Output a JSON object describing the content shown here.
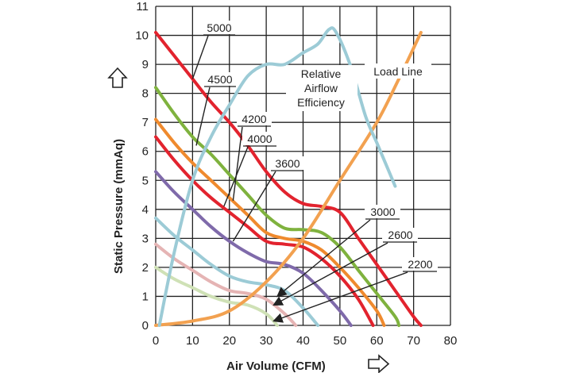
{
  "chart_data": {
    "type": "line",
    "xlabel": "Air Volume (CFM)",
    "ylabel": "Static Pressure (mmAq)",
    "xlim": [
      0,
      80
    ],
    "ylim": [
      0,
      11
    ],
    "x_ticks": [
      0,
      10,
      20,
      30,
      40,
      50,
      60,
      70,
      80
    ],
    "y_ticks": [
      0,
      1,
      2,
      3,
      4,
      5,
      6,
      7,
      8,
      9,
      10,
      11
    ],
    "grid": true,
    "legend": "none",
    "series": [
      {
        "name": "5000",
        "color": "#e2232e",
        "points": [
          [
            0,
            10.1
          ],
          [
            5,
            9.3
          ],
          [
            10,
            8.5
          ],
          [
            15,
            7.7
          ],
          [
            20,
            7.0
          ],
          [
            25,
            6.2
          ],
          [
            30,
            5.3
          ],
          [
            35,
            4.6
          ],
          [
            40,
            4.2
          ],
          [
            45,
            4.1
          ],
          [
            50,
            3.9
          ],
          [
            55,
            3.0
          ],
          [
            60,
            2.1
          ],
          [
            65,
            1.2
          ],
          [
            70,
            0.3
          ],
          [
            72,
            0
          ]
        ]
      },
      {
        "name": "4500",
        "color": "#7fb23e",
        "points": [
          [
            0,
            8.2
          ],
          [
            5,
            7.3
          ],
          [
            10,
            6.5
          ],
          [
            15,
            5.9
          ],
          [
            20,
            5.2
          ],
          [
            25,
            4.5
          ],
          [
            30,
            3.8
          ],
          [
            35,
            3.35
          ],
          [
            40,
            3.3
          ],
          [
            45,
            3.2
          ],
          [
            50,
            2.7
          ],
          [
            55,
            1.9
          ],
          [
            60,
            1.1
          ],
          [
            65,
            0.3
          ],
          [
            66,
            0
          ]
        ]
      },
      {
        "name": "4200",
        "color": "#ef8a2e",
        "points": [
          [
            0,
            7.1
          ],
          [
            5,
            6.3
          ],
          [
            10,
            5.6
          ],
          [
            15,
            5.0
          ],
          [
            20,
            4.4
          ],
          [
            25,
            3.8
          ],
          [
            30,
            3.2
          ],
          [
            35,
            3.0
          ],
          [
            40,
            2.9
          ],
          [
            45,
            2.6
          ],
          [
            50,
            2.0
          ],
          [
            55,
            1.3
          ],
          [
            60,
            0.5
          ],
          [
            62,
            0
          ]
        ]
      },
      {
        "name": "4000",
        "color": "#e2232e",
        "points": [
          [
            0,
            6.5
          ],
          [
            5,
            5.7
          ],
          [
            10,
            5.0
          ],
          [
            15,
            4.4
          ],
          [
            20,
            3.9
          ],
          [
            25,
            3.4
          ],
          [
            30,
            2.9
          ],
          [
            35,
            2.8
          ],
          [
            40,
            2.7
          ],
          [
            45,
            2.3
          ],
          [
            50,
            1.7
          ],
          [
            55,
            0.9
          ],
          [
            59,
            0
          ]
        ]
      },
      {
        "name": "3600",
        "color": "#7f6aaa",
        "points": [
          [
            0,
            5.3
          ],
          [
            5,
            4.6
          ],
          [
            10,
            4.0
          ],
          [
            15,
            3.4
          ],
          [
            20,
            2.9
          ],
          [
            25,
            2.5
          ],
          [
            30,
            2.2
          ],
          [
            35,
            2.1
          ],
          [
            40,
            1.8
          ],
          [
            45,
            1.2
          ],
          [
            50,
            0.5
          ],
          [
            53,
            0
          ]
        ]
      },
      {
        "name": "3000",
        "color": "#9ccbd6",
        "points": [
          [
            0,
            3.7
          ],
          [
            5,
            3.1
          ],
          [
            10,
            2.6
          ],
          [
            15,
            2.1
          ],
          [
            20,
            1.7
          ],
          [
            25,
            1.5
          ],
          [
            30,
            1.4
          ],
          [
            35,
            1.2
          ],
          [
            40,
            0.6
          ],
          [
            44,
            0
          ]
        ]
      },
      {
        "name": "2600",
        "color": "#e5b4b4",
        "points": [
          [
            0,
            2.8
          ],
          [
            5,
            2.3
          ],
          [
            10,
            1.9
          ],
          [
            15,
            1.5
          ],
          [
            20,
            1.2
          ],
          [
            25,
            1.1
          ],
          [
            30,
            0.9
          ],
          [
            35,
            0.4
          ],
          [
            38,
            0
          ]
        ]
      },
      {
        "name": "2200",
        "color": "#cfe1b6",
        "points": [
          [
            0,
            2.0
          ],
          [
            5,
            1.6
          ],
          [
            10,
            1.3
          ],
          [
            15,
            1.0
          ],
          [
            20,
            0.8
          ],
          [
            25,
            0.7
          ],
          [
            30,
            0.4
          ],
          [
            33,
            0
          ]
        ]
      }
    ],
    "efficiency_curve": {
      "name": "Relative Airflow Efficiency",
      "color": "#9ccbd6",
      "points": [
        [
          1,
          0
        ],
        [
          5,
          2.5
        ],
        [
          10,
          5.0
        ],
        [
          15,
          6.5
        ],
        [
          20,
          7.6
        ],
        [
          25,
          8.6
        ],
        [
          30,
          9.0
        ],
        [
          35,
          9.0
        ],
        [
          40,
          9.4
        ],
        [
          44,
          9.7
        ],
        [
          47,
          10.2
        ],
        [
          49,
          10.1
        ],
        [
          53,
          8.9
        ],
        [
          57,
          7.2
        ],
        [
          60,
          6.3
        ],
        [
          63,
          5.4
        ],
        [
          65,
          4.8
        ]
      ]
    },
    "load_line": {
      "name": "Load Line",
      "color": "#f2a150",
      "points": [
        [
          0,
          0
        ],
        [
          10,
          0.15
        ],
        [
          20,
          0.5
        ],
        [
          30,
          1.5
        ],
        [
          40,
          3.0
        ],
        [
          50,
          5.0
        ],
        [
          60,
          7.0
        ],
        [
          66,
          8.5
        ],
        [
          72,
          10.1
        ]
      ]
    },
    "annotations": [
      {
        "text": "5000",
        "target": [
          10,
          8.5
        ]
      },
      {
        "text": "4500",
        "target": [
          11,
          6.2
        ]
      },
      {
        "text": "4200",
        "target": [
          21,
          4.3
        ]
      },
      {
        "text": "4000",
        "target": [
          18.5,
          4.1
        ]
      },
      {
        "text": "3600",
        "target": [
          21,
          2.9
        ]
      },
      {
        "text": "3000",
        "target": [
          33,
          1.0
        ]
      },
      {
        "text": "2600",
        "target": [
          32,
          0.7
        ]
      },
      {
        "text": "2200",
        "target": [
          32,
          0.15
        ]
      },
      {
        "text": "Relative Airflow Efficiency"
      },
      {
        "text": "Load Line"
      }
    ]
  }
}
